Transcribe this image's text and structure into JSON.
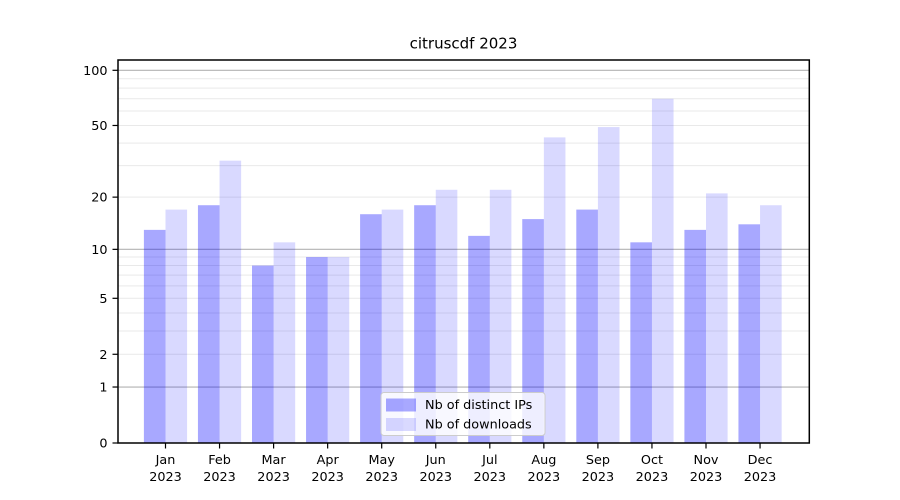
{
  "title": "citruscdf 2023",
  "chart_data": {
    "type": "bar",
    "title": "citruscdf 2023",
    "categories": [
      "Jan",
      "Feb",
      "Mar",
      "Apr",
      "May",
      "Jun",
      "Jul",
      "Aug",
      "Sep",
      "Oct",
      "Nov",
      "Dec"
    ],
    "category_year": "2023",
    "series": [
      {
        "name": "Nb of distinct IPs",
        "color": "rgba(0,0,255,0.34)",
        "values": [
          13,
          18,
          8,
          9,
          16,
          18,
          12,
          15,
          17,
          11,
          13,
          14
        ]
      },
      {
        "name": "Nb of downloads",
        "color": "rgba(0,0,255,0.15)",
        "values": [
          17,
          32,
          11,
          9,
          17,
          22,
          22,
          43,
          49,
          70,
          21,
          18
        ]
      }
    ],
    "yscale": "log1p",
    "ylim": [
      0,
      115
    ],
    "yticks": [
      0,
      1,
      2,
      5,
      10,
      20,
      50,
      100
    ],
    "major_gridlines": [
      1,
      10,
      100
    ],
    "minor_gridlines": [
      2,
      3,
      4,
      5,
      6,
      7,
      8,
      9,
      20,
      30,
      40,
      50,
      60,
      70,
      80,
      90
    ],
    "grid": true,
    "legend_position": "lower center"
  },
  "legend": {
    "items": [
      {
        "label": "Nb of distinct IPs",
        "color": "rgba(0,0,255,0.34)"
      },
      {
        "label": "Nb of downloads",
        "color": "rgba(0,0,255,0.15)"
      }
    ]
  },
  "colors": {
    "major_grid": "#b2b2b2",
    "minor_grid": "#e9e9e9",
    "spine": "#000000",
    "legend_border": "#cccccc",
    "legend_bg": "rgba(255,255,255,0.8)"
  }
}
